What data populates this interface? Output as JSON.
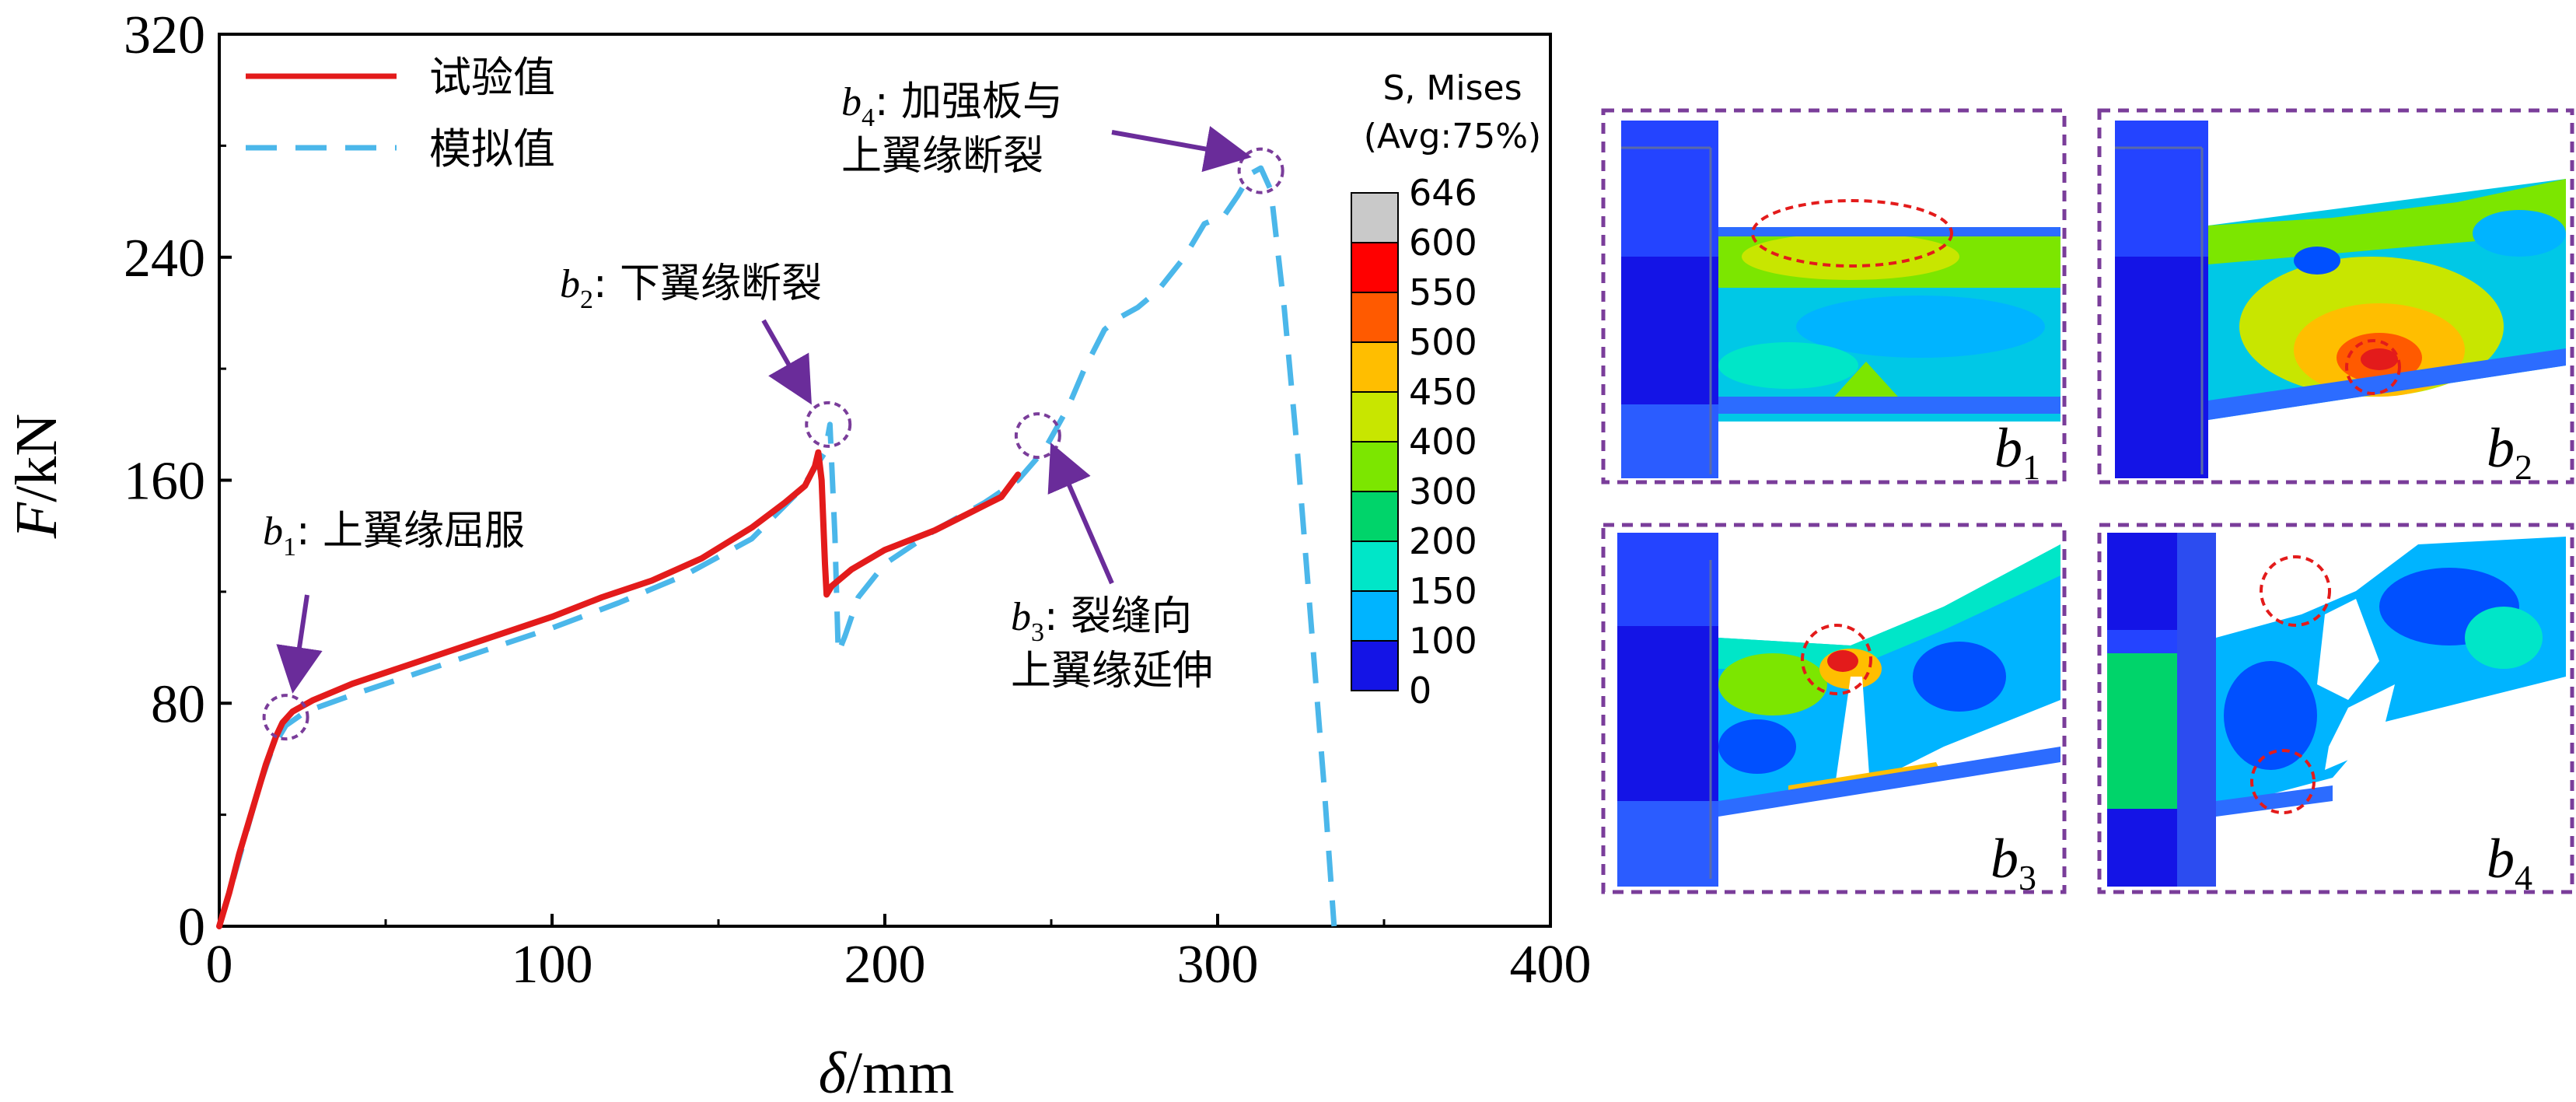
{
  "chart_data": {
    "type": "line",
    "xlabel_symbol": "δ",
    "xlabel_unit": "/mm",
    "ylabel_symbol": "F",
    "ylabel_unit": "/kN",
    "xlim": [
      0,
      400
    ],
    "ylim": [
      0,
      320
    ],
    "xticks": [
      "0",
      "100",
      "200",
      "300",
      "400"
    ],
    "yticks": [
      "0",
      "80",
      "160",
      "240",
      "320"
    ],
    "legend_position": "top-left",
    "series": [
      {
        "name": "试验值",
        "style": "solid",
        "color": "#e31b1b",
        "points": [
          [
            0,
            0
          ],
          [
            3,
            12
          ],
          [
            6,
            26
          ],
          [
            10,
            42
          ],
          [
            14,
            58
          ],
          [
            17,
            68
          ],
          [
            19,
            73
          ],
          [
            22,
            77
          ],
          [
            28,
            81
          ],
          [
            40,
            87
          ],
          [
            60,
            95
          ],
          [
            80,
            103
          ],
          [
            100,
            111
          ],
          [
            115,
            118
          ],
          [
            130,
            124
          ],
          [
            145,
            132
          ],
          [
            160,
            143
          ],
          [
            170,
            152
          ],
          [
            176,
            158
          ],
          [
            179,
            165
          ],
          [
            180,
            170
          ],
          [
            181,
            160
          ],
          [
            182,
            130
          ],
          [
            182.5,
            119
          ],
          [
            184,
            122
          ],
          [
            190,
            128
          ],
          [
            200,
            135
          ],
          [
            215,
            142
          ],
          [
            225,
            148
          ],
          [
            235,
            154
          ],
          [
            240,
            162
          ]
        ]
      },
      {
        "name": "模拟值",
        "style": "dashed",
        "color": "#4bb7ea",
        "points": [
          [
            0,
            0
          ],
          [
            4,
            16
          ],
          [
            8,
            33
          ],
          [
            12,
            50
          ],
          [
            16,
            64
          ],
          [
            20,
            72
          ],
          [
            26,
            77
          ],
          [
            40,
            83
          ],
          [
            60,
            91
          ],
          [
            80,
            99
          ],
          [
            100,
            107
          ],
          [
            120,
            116
          ],
          [
            140,
            126
          ],
          [
            160,
            139
          ],
          [
            175,
            157
          ],
          [
            182,
            170
          ],
          [
            183.5,
            180
          ],
          [
            185,
            140
          ],
          [
            186,
            98
          ],
          [
            188,
            104
          ],
          [
            192,
            118
          ],
          [
            200,
            130
          ],
          [
            215,
            142
          ],
          [
            230,
            152
          ],
          [
            240,
            160
          ],
          [
            248,
            171
          ],
          [
            255,
            186
          ],
          [
            260,
            200
          ],
          [
            266,
            214
          ],
          [
            270,
            218
          ],
          [
            276,
            222
          ],
          [
            282,
            228
          ],
          [
            290,
            240
          ],
          [
            296,
            252
          ],
          [
            302,
            255
          ],
          [
            306,
            262
          ],
          [
            310,
            270
          ],
          [
            313,
            272
          ],
          [
            316,
            264
          ],
          [
            320,
            222
          ],
          [
            324,
            170
          ],
          [
            328,
            110
          ],
          [
            332,
            50
          ],
          [
            335,
            0
          ]
        ]
      }
    ],
    "annotations": [
      {
        "id": "b1",
        "text": ": 上翼缘屈服",
        "x": 20,
        "y": 75
      },
      {
        "id": "b2",
        "text": ": 下翼缘断裂",
        "x": 183,
        "y": 180
      },
      {
        "id": "b3",
        "text_line1": ": 裂缝向",
        "text_line2": "上翼缘延伸",
        "x": 246,
        "y": 176
      },
      {
        "id": "b4",
        "text_line1": ": 加强板与",
        "text_line2": "上翼缘断裂",
        "x": 313,
        "y": 271
      }
    ]
  },
  "colorbar": {
    "title_line1": "S, Mises",
    "title_line2": "(Avg:75%)",
    "labels": [
      "646",
      "600",
      "550",
      "500",
      "450",
      "400",
      "300",
      "200",
      "150",
      "100",
      "0"
    ],
    "colors": [
      "#c9c9c9",
      "#ff0000",
      "#ff5a00",
      "#ffbe00",
      "#c8e600",
      "#7ce600",
      "#00d46a",
      "#00e6c8",
      "#00b4ff",
      "#0050ff",
      "#1414e6"
    ]
  },
  "panels": [
    {
      "id": "b1",
      "letter": "b",
      "sub": "1"
    },
    {
      "id": "b2",
      "letter": "b",
      "sub": "2"
    },
    {
      "id": "b3",
      "letter": "b",
      "sub": "3"
    },
    {
      "id": "b4",
      "letter": "b",
      "sub": "4"
    }
  ]
}
